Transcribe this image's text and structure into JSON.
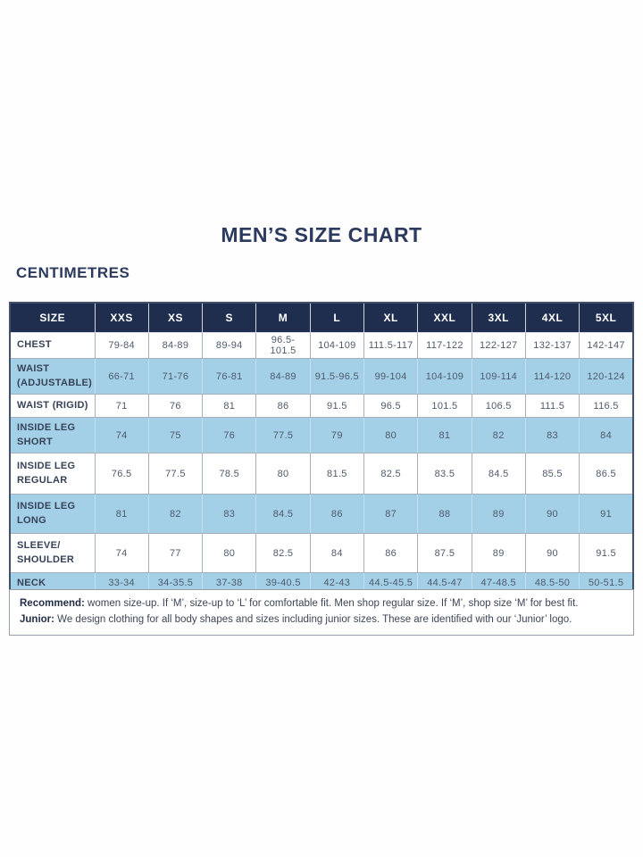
{
  "page": {
    "title": "MEN’S SIZE CHART",
    "unit_label": "CENTIMETRES"
  },
  "chart_data": {
    "type": "table",
    "title": "MEN’S SIZE CHART",
    "unit": "CENTIMETRES",
    "columns": [
      "SIZE",
      "XXS",
      "XS",
      "S",
      "M",
      "L",
      "XL",
      "XXL",
      "3XL",
      "4XL",
      "5XL"
    ],
    "rows": [
      {
        "label": "CHEST",
        "values": [
          "79-84",
          "84-89",
          "89-94",
          "96.5-101.5",
          "104-109",
          "111.5-117",
          "117-122",
          "122-127",
          "132-137",
          "142-147"
        ]
      },
      {
        "label": "WAIST (ADJUSTABLE)",
        "values": [
          "66-71",
          "71-76",
          "76-81",
          "84-89",
          "91.5-96.5",
          "99-104",
          "104-109",
          "109-114",
          "114-120",
          "120-124"
        ]
      },
      {
        "label": "WAIST (RIGID)",
        "values": [
          "71",
          "76",
          "81",
          "86",
          "91.5",
          "96.5",
          "101.5",
          "106.5",
          "111.5",
          "116.5"
        ]
      },
      {
        "label": "INSIDE LEG SHORT",
        "values": [
          "74",
          "75",
          "76",
          "77.5",
          "79",
          "80",
          "81",
          "82",
          "83",
          "84"
        ]
      },
      {
        "label": "INSIDE LEG REGULAR",
        "values": [
          "76.5",
          "77.5",
          "78.5",
          "80",
          "81.5",
          "82.5",
          "83.5",
          "84.5",
          "85.5",
          "86.5"
        ]
      },
      {
        "label": "INSIDE LEG LONG",
        "values": [
          "81",
          "82",
          "83",
          "84.5",
          "86",
          "87",
          "88",
          "89",
          "90",
          "91"
        ]
      },
      {
        "label": "SLEEVE/ SHOULDER",
        "values": [
          "74",
          "77",
          "80",
          "82.5",
          "84",
          "86",
          "87.5",
          "89",
          "90",
          "91.5"
        ]
      },
      {
        "label": "NECK",
        "values": [
          "33-34",
          "34-35.5",
          "37-38",
          "39-40.5",
          "42-43",
          "44.5-45.5",
          "44.5-47",
          "47-48.5",
          "48.5-50",
          "50-51.5"
        ]
      }
    ]
  },
  "notes": {
    "recommend_label": "Recommend:",
    "recommend_text": " women size-up. If ‘M’, size-up to ‘L’ for comfortable fit. Men shop regular size. If ‘M’, shop size ‘M’ for best fit.",
    "junior_label": "Junior:",
    "junior_text": " We design clothing for all body shapes and sizes including junior sizes. These are identified with our ‘Junior’ logo."
  },
  "colors": {
    "header_navy": "#1f2e4e",
    "row_blue": "#a3d0e6",
    "title_navy": "#2b3a5e"
  }
}
